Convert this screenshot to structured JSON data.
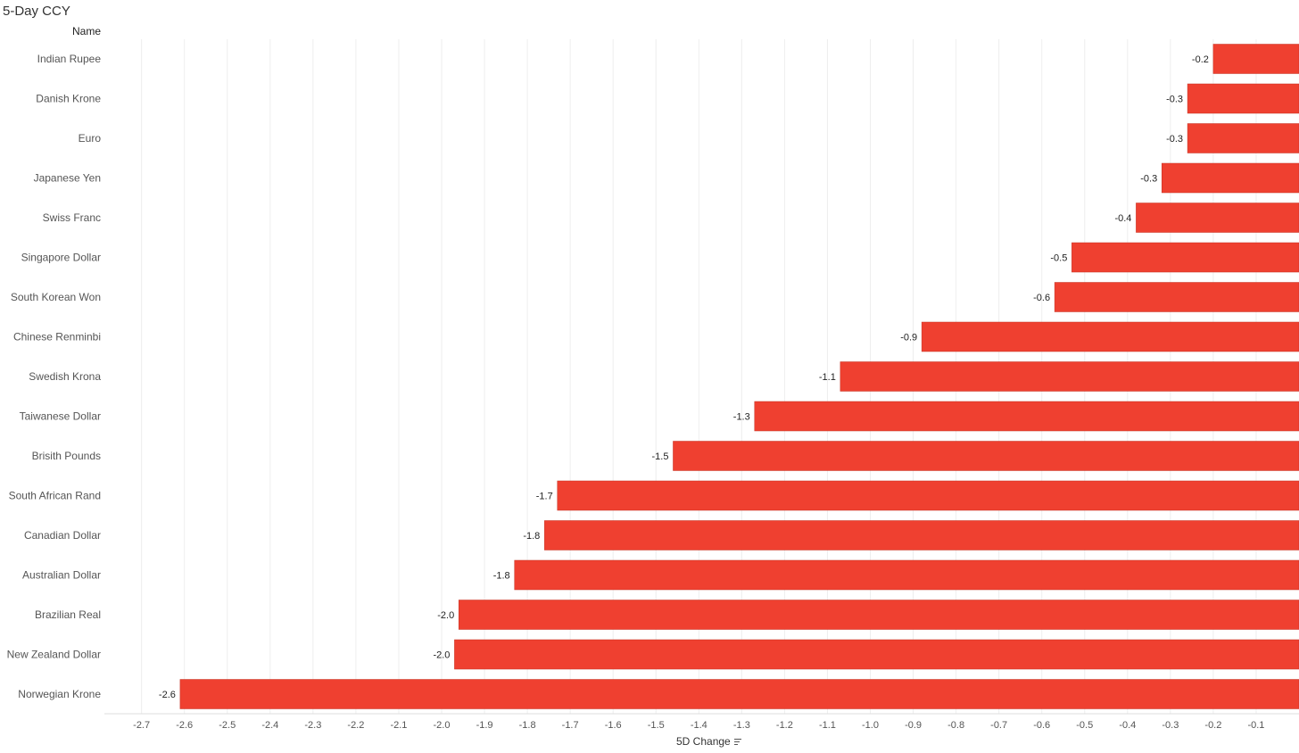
{
  "title": "5-Day CCY",
  "dimension_header": "Name",
  "colors": {
    "bar": "#ef4030",
    "bar_stroke": "#c43425",
    "gridline": "#eeeeee"
  },
  "chart_data": {
    "type": "bar",
    "orientation": "horizontal",
    "title": "5-Day CCY",
    "xlabel": "5D Change",
    "ylabel": "Name",
    "xlim": [
      -2.8,
      0
    ],
    "x_ticks": [
      -2.7,
      -2.6,
      -2.5,
      -2.4,
      -2.3,
      -2.2,
      -2.1,
      -2.0,
      -1.9,
      -1.8,
      -1.7,
      -1.6,
      -1.5,
      -1.4,
      -1.3,
      -1.2,
      -1.1,
      -1.0,
      -0.9,
      -0.8,
      -0.7,
      -0.6,
      -0.5,
      -0.4,
      -0.3,
      -0.2,
      -0.1
    ],
    "x_tick_labels": [
      "-2.7",
      "-2.6",
      "-2.5",
      "-2.4",
      "-2.3",
      "-2.2",
      "-2.1",
      "-2.0",
      "-1.9",
      "-1.8",
      "-1.7",
      "-1.6",
      "-1.5",
      "-1.4",
      "-1.3",
      "-1.2",
      "-1.1",
      "-1.0",
      "-0.9",
      "-0.8",
      "-0.7",
      "-0.6",
      "-0.5",
      "-0.4",
      "-0.3",
      "-0.2",
      "-0.1"
    ],
    "grid": true,
    "categories": [
      "Indian Rupee",
      "Danish Krone",
      "Euro",
      "Japanese Yen",
      "Swiss Franc",
      "Singapore Dollar",
      "South Korean Won",
      "Chinese Renminbi",
      "Swedish Krona",
      "Taiwanese Dollar",
      "Brisith Pounds",
      "South African Rand",
      "Canadian Dollar",
      "Australian Dollar",
      "Brazilian Real",
      "New Zealand Dollar",
      "Norwegian Krone"
    ],
    "values": [
      -0.2,
      -0.26,
      -0.26,
      -0.32,
      -0.38,
      -0.53,
      -0.57,
      -0.88,
      -1.07,
      -1.27,
      -1.46,
      -1.73,
      -1.76,
      -1.83,
      -1.96,
      -1.97,
      -2.61
    ],
    "value_labels": [
      "-0.2",
      "-0.3",
      "-0.3",
      "-0.3",
      "-0.4",
      "-0.5",
      "-0.6",
      "-0.9",
      "-1.1",
      "-1.3",
      "-1.5",
      "-1.7",
      "-1.8",
      "-1.8",
      "-2.0",
      "-2.0",
      "-2.6"
    ]
  }
}
